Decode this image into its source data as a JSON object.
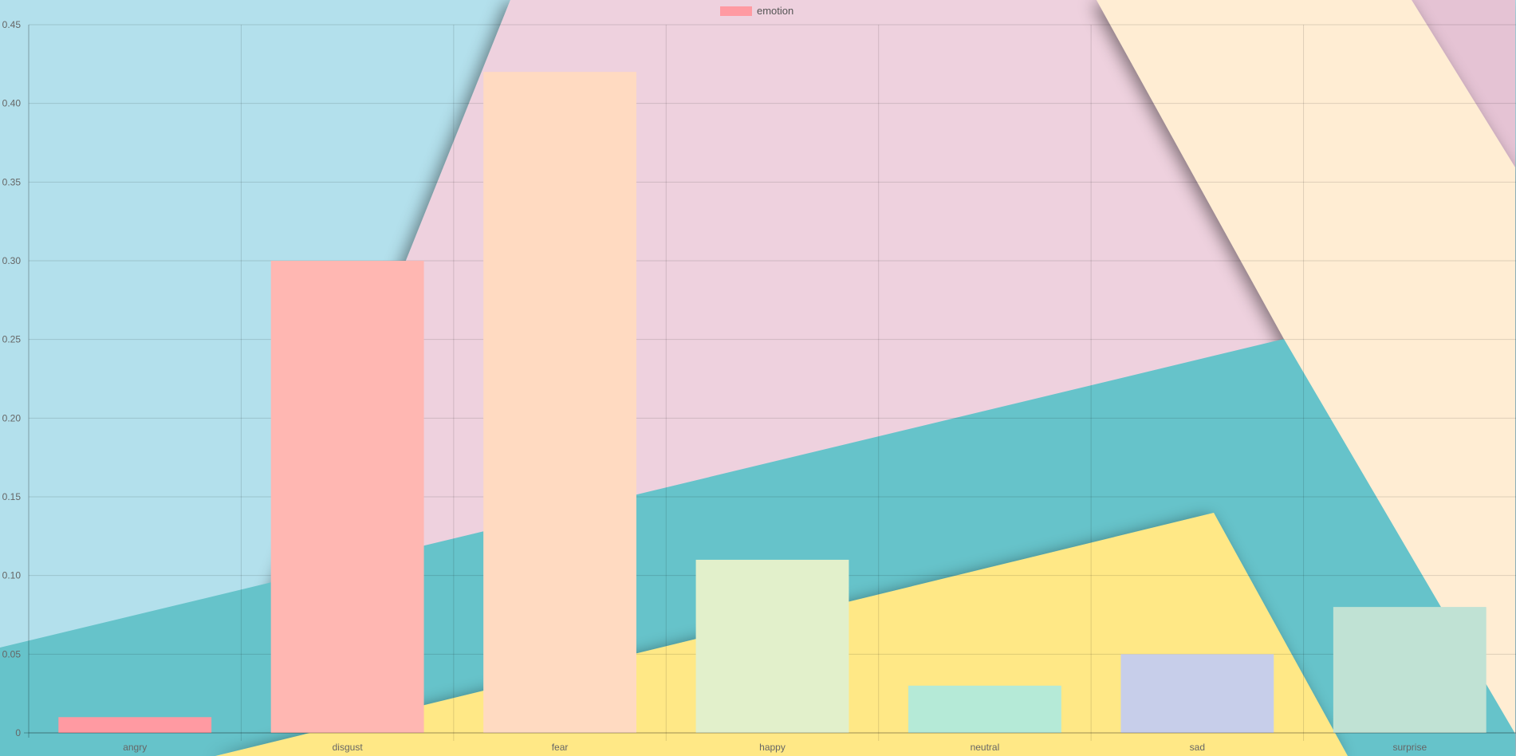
{
  "chart_data": {
    "type": "bar",
    "categories": [
      "angry",
      "disgust",
      "fear",
      "happy",
      "neutral",
      "sad",
      "surprise"
    ],
    "series": [
      {
        "name": "emotion",
        "values": [
          0.01,
          0.3,
          0.42,
          0.11,
          0.03,
          0.05,
          0.08
        ]
      }
    ],
    "ylim": [
      0,
      0.45
    ],
    "yticks": [
      "0",
      "0.05",
      "0.10",
      "0.15",
      "0.20",
      "0.25",
      "0.30",
      "0.35",
      "0.40",
      "0.45"
    ],
    "bar_colors": [
      "#ff9aa2",
      "#ffb7b2",
      "#ffdac1",
      "#e2f0cb",
      "#b5ead7",
      "#c7ceea",
      "#c0e2d4"
    ],
    "legend": {
      "label": "emotion",
      "color": "#ff9aa2",
      "position": "top-center"
    },
    "grid": true
  },
  "background": {
    "colors": [
      "#b3e0ec",
      "#eed1de",
      "#ffedd3",
      "#66c3ca",
      "#ffe886",
      "#e5c3d4"
    ]
  }
}
